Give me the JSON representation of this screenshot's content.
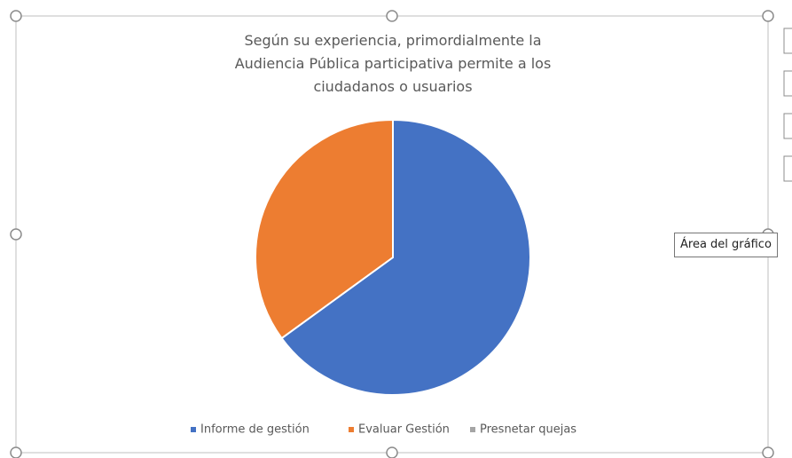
{
  "chart_data": {
    "type": "pie",
    "title": "Según su experiencia, primordialmente la Audiencia Pública participativa permite a los ciudadanos o usuarios",
    "categories": [
      "Informe de gestión",
      "Evaluar Gestión",
      "Presnetar quejas"
    ],
    "values": [
      65,
      35,
      0
    ],
    "colors": [
      "#4472c4",
      "#ed7d31",
      "#a5a5a5"
    ],
    "legend": "bottom",
    "tooltip": "Área del gráfico"
  }
}
